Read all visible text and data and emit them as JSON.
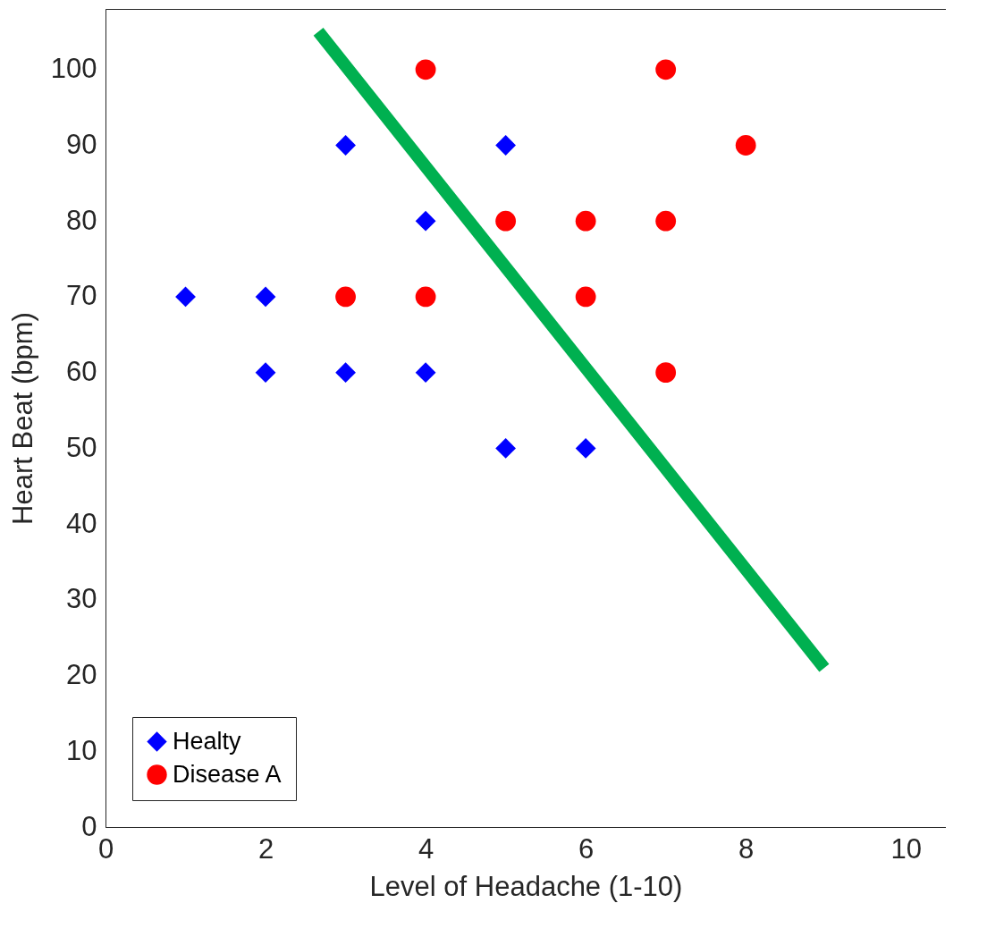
{
  "chart_data": {
    "type": "scatter",
    "xlabel": "Level of Headache (1-10)",
    "ylabel": "Heart Beat (bpm)",
    "xlim": [
      0,
      10.5
    ],
    "ylim": [
      0,
      108
    ],
    "xticks": [
      0,
      2,
      4,
      6,
      8,
      10
    ],
    "yticks": [
      0,
      10,
      20,
      30,
      40,
      50,
      60,
      70,
      80,
      90,
      100
    ],
    "grid": false,
    "legend": "bottom left",
    "series": [
      {
        "name": "Healty",
        "color": "#0000ff",
        "marker": "diamond",
        "x": [
          1,
          2,
          2,
          3,
          3,
          4,
          4,
          5,
          5,
          6
        ],
        "values": [
          70,
          70,
          60,
          90,
          60,
          80,
          60,
          90,
          50,
          50
        ]
      },
      {
        "name": "Disease A",
        "color": "#ff0000",
        "marker": "circle",
        "x": [
          4,
          7,
          8,
          5,
          6,
          7,
          3,
          4,
          6,
          7
        ],
        "values": [
          100,
          100,
          90,
          80,
          80,
          80,
          70,
          70,
          70,
          60
        ]
      },
      {
        "type": "line",
        "color": "#00b050",
        "x": [
          2.66,
          8.98
        ],
        "values": [
          105,
          21
        ]
      }
    ]
  }
}
